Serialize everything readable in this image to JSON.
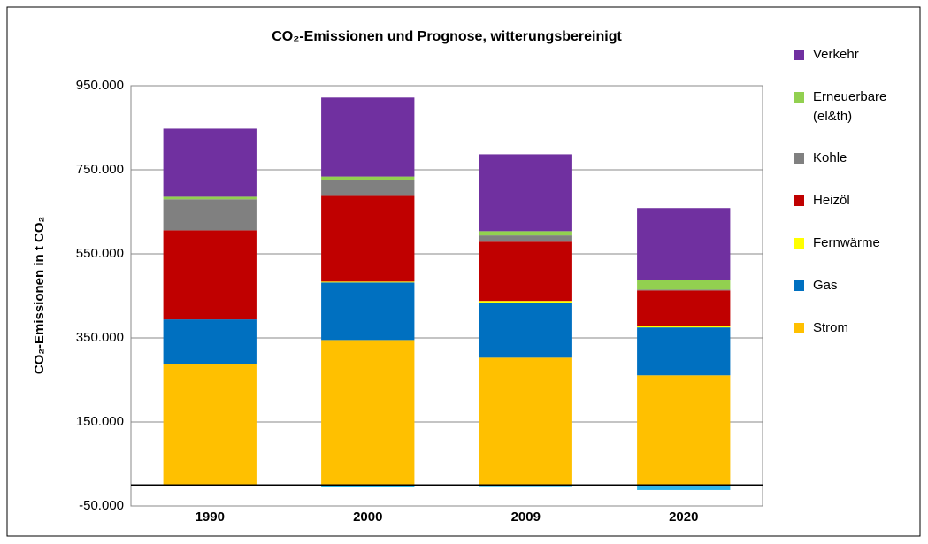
{
  "chart_data": {
    "type": "stacked_bar",
    "title": "CO₂-Emissionen und Prognose, witterungsbereinigt",
    "y_label": "CO₂-Emissionen in t CO₂",
    "categories": [
      "1990",
      "2000",
      "2009",
      "2020"
    ],
    "series": [
      {
        "name": "Strom",
        "color": "#ffc000",
        "values": [
          288000,
          345000,
          303000,
          261000
        ]
      },
      {
        "name": "Gas",
        "color": "#0070c0",
        "values": [
          106000,
          137000,
          131000,
          114000
        ]
      },
      {
        "name": "Fernwärme",
        "color": "#ffff00",
        "values": [
          0,
          2000,
          4000,
          4000
        ]
      },
      {
        "name": "Heizöl",
        "color": "#c00000",
        "values": [
          212000,
          204000,
          141000,
          84000
        ]
      },
      {
        "name": "Kohle",
        "color": "#808080",
        "values": [
          74000,
          38000,
          15000,
          2000
        ]
      },
      {
        "name": "Erneuerbare (el&th)",
        "color": "#92d050",
        "values": [
          6000,
          8000,
          10000,
          23000
        ]
      },
      {
        "name": "Verkehr",
        "color": "#7030a0",
        "values": [
          162000,
          188000,
          183000,
          171000
        ]
      },
      {
        "color": "#31b6e7",
        "values": [
          0,
          -4000,
          -3000,
          -12000
        ]
      }
    ],
    "ylim": [
      -50000,
      950000
    ],
    "yticks": [
      {
        "value": -50000,
        "label": "-50.000"
      },
      {
        "value": 150000,
        "label": "150.000"
      },
      {
        "value": 350000,
        "label": "350.000"
      },
      {
        "value": 550000,
        "label": "550.000"
      },
      {
        "value": 750000,
        "label": "750.000"
      },
      {
        "value": 950000,
        "label": "950.000"
      }
    ],
    "grid": true,
    "legend": "right"
  }
}
